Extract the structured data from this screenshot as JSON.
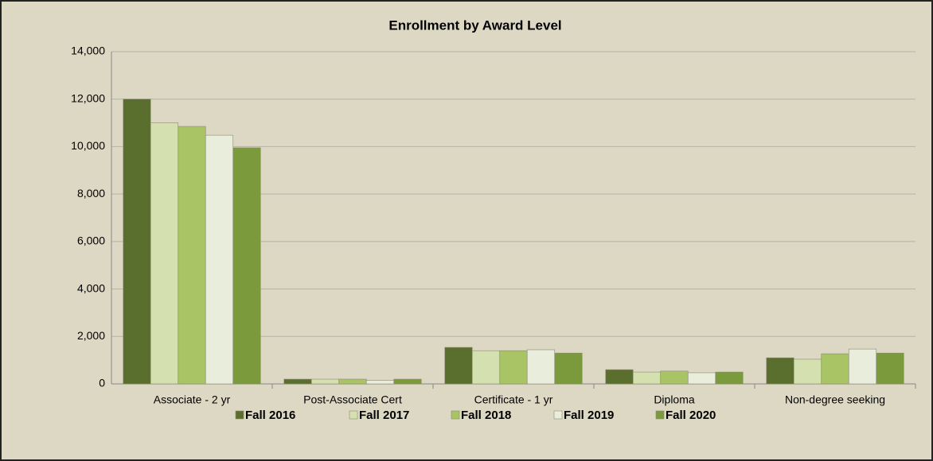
{
  "chart_data": {
    "type": "bar",
    "title": "Enrollment by Award Level",
    "categories": [
      "Associate - 2 yr",
      "Post-Associate Cert",
      "Certificate - 1 yr",
      "Diploma",
      "Non-degree seeking"
    ],
    "series": [
      {
        "name": "Fall 2016",
        "color": "#5a6e2e",
        "values": [
          12000,
          200,
          1540,
          600,
          1100
        ]
      },
      {
        "name": "Fall 2017",
        "color": "#d4e0b0",
        "values": [
          11000,
          200,
          1400,
          500,
          1040
        ]
      },
      {
        "name": "Fall 2018",
        "color": "#a8c464",
        "values": [
          10850,
          200,
          1400,
          540,
          1270
        ]
      },
      {
        "name": "Fall 2019",
        "color": "#e8eddc",
        "values": [
          10480,
          150,
          1440,
          470,
          1470
        ]
      },
      {
        "name": "Fall 2020",
        "color": "#7a9a3c",
        "values": [
          9950,
          200,
          1300,
          500,
          1300
        ]
      }
    ],
    "ylim": [
      0,
      14000
    ],
    "yticks": [
      0,
      {
        "value": 2000,
        "label": "2,000"
      },
      {
        "value": 4000,
        "label": "4,000"
      },
      {
        "value": 6000,
        "label": "6,000"
      },
      {
        "value": 8000,
        "label": "8,000"
      },
      {
        "value": 10000,
        "label": "10,000"
      },
      {
        "value": 12000,
        "label": "12,000"
      },
      {
        "value": 14000,
        "label": "14,000"
      }
    ],
    "grid": true,
    "legend": "bottom"
  }
}
